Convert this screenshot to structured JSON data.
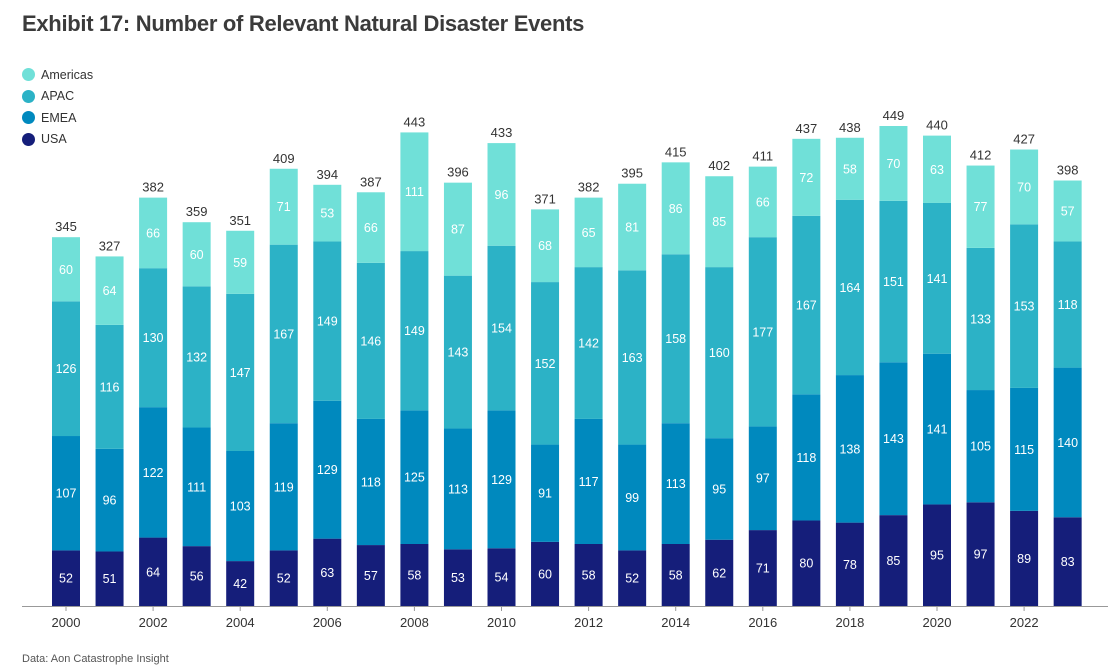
{
  "header": {
    "title": "Exhibit 17: Number of Relevant Natural Disaster Events"
  },
  "footer": {
    "source": "Data: Aon Catastrophe Insight"
  },
  "legend": {
    "items": [
      {
        "label": "Americas",
        "color": "#70e0d8"
      },
      {
        "label": "APAC",
        "color": "#2cb2c6"
      },
      {
        "label": "EMEA",
        "color": "#0089be"
      },
      {
        "label": "USA",
        "color": "#151e7a"
      }
    ]
  },
  "chart_data": {
    "type": "bar",
    "stacked": true,
    "title": "Exhibit 17: Number of Relevant Natural Disaster Events",
    "xlabel": "",
    "ylabel": "",
    "ylim": [
      0,
      470
    ],
    "grid": false,
    "legend_position": "top-left",
    "x_tick_labels": [
      "2000",
      "2002",
      "2004",
      "2006",
      "2008",
      "2010",
      "2012",
      "2014",
      "2016",
      "2018",
      "2020",
      "2022"
    ],
    "categories": [
      "2000",
      "2001",
      "2002",
      "2003",
      "2004",
      "2005",
      "2006",
      "2007",
      "2008",
      "2009",
      "2010",
      "2011",
      "2012",
      "2013",
      "2014",
      "2015",
      "2016",
      "2017",
      "2018",
      "2019",
      "2020",
      "2021",
      "2022",
      "2023"
    ],
    "totals": [
      345,
      327,
      382,
      359,
      351,
      409,
      394,
      387,
      443,
      396,
      433,
      371,
      382,
      395,
      415,
      402,
      411,
      437,
      438,
      449,
      440,
      412,
      427,
      398
    ],
    "series": [
      {
        "name": "USA",
        "color": "#151e7a",
        "text_color": "#ffffff",
        "values": [
          52,
          51,
          64,
          56,
          42,
          52,
          63,
          57,
          58,
          53,
          54,
          60,
          58,
          52,
          58,
          62,
          71,
          80,
          78,
          85,
          95,
          97,
          89,
          83
        ]
      },
      {
        "name": "EMEA",
        "color": "#0089be",
        "text_color": "#ffffff",
        "values": [
          107,
          96,
          122,
          111,
          103,
          119,
          129,
          118,
          125,
          113,
          129,
          91,
          117,
          99,
          113,
          95,
          97,
          118,
          138,
          143,
          141,
          105,
          115,
          140
        ]
      },
      {
        "name": "APAC",
        "color": "#2cb2c6",
        "text_color": "#ffffff",
        "values": [
          126,
          116,
          130,
          132,
          147,
          167,
          149,
          146,
          149,
          143,
          154,
          152,
          142,
          163,
          158,
          160,
          177,
          167,
          164,
          151,
          141,
          133,
          153,
          118
        ]
      },
      {
        "name": "Americas",
        "color": "#70e0d8",
        "text_color": "#ffffff",
        "values": [
          60,
          64,
          66,
          60,
          59,
          71,
          53,
          66,
          111,
          87,
          96,
          68,
          65,
          81,
          86,
          85,
          66,
          72,
          58,
          70,
          63,
          77,
          70,
          57
        ]
      }
    ]
  }
}
